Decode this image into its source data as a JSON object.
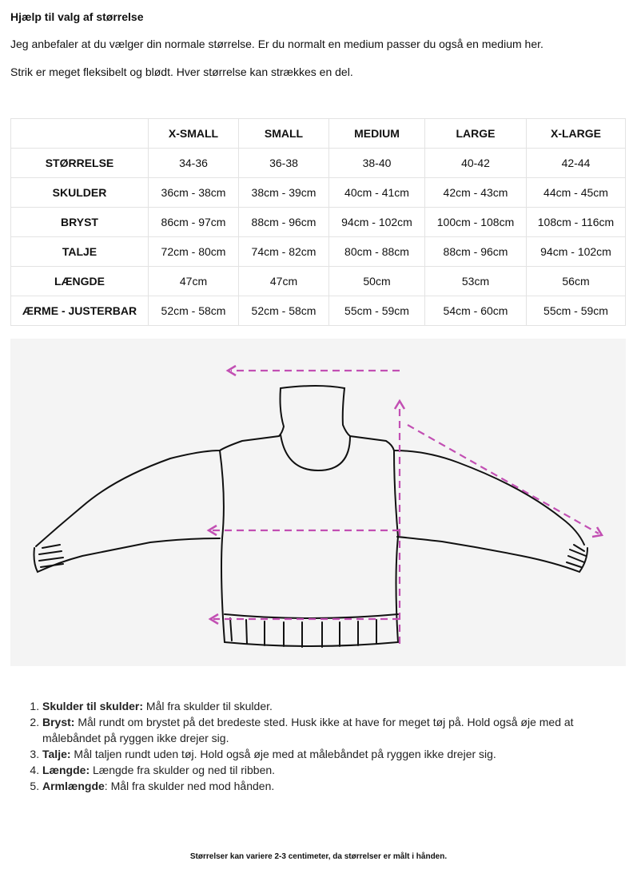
{
  "title": "Hjælp til valg af størrelse",
  "intro": [
    "Jeg anbefaler at du vælger din normale størrelse. Er du normalt en medium passer du også en medium her.",
    "Strik er meget fleksibelt og blødt. Hver størrelse kan strækkes en del."
  ],
  "table": {
    "headers": [
      "",
      "X-SMALL",
      "SMALL",
      "MEDIUM",
      "LARGE",
      "X-LARGE"
    ],
    "rows": [
      [
        "STØRRELSE",
        "34-36",
        "36-38",
        "38-40",
        "40-42",
        "42-44"
      ],
      [
        "SKULDER",
        "36cm - 38cm",
        "38cm - 39cm",
        "40cm - 41cm",
        "42cm - 43cm",
        "44cm - 45cm"
      ],
      [
        "BRYST",
        "86cm - 97cm",
        "88cm - 96cm",
        "94cm - 102cm",
        "100cm - 108cm",
        "108cm - 116cm"
      ],
      [
        "TALJE",
        "72cm - 80cm",
        "74cm - 82cm",
        "80cm - 88cm",
        "88cm - 96cm",
        "94cm - 102cm"
      ],
      [
        "LÆNGDE",
        "47cm",
        "47cm",
        "50cm",
        "53cm",
        "56cm"
      ],
      [
        "ÆRME - JUSTERBAR",
        "52cm - 58cm",
        "52cm - 58cm",
        "55cm - 59cm",
        "54cm - 60cm",
        "55cm - 59cm"
      ]
    ]
  },
  "diagram": {
    "arrow_color": "#c24fb3",
    "background": "#f4f4f4"
  },
  "list": [
    {
      "term": "Skulder til skulder:",
      "text": " Mål fra skulder til skulder."
    },
    {
      "term": "Bryst:",
      "text": " Mål rundt om brystet på det bredeste sted. Husk ikke at have for meget tøj på. Hold også øje med at målebåndet på ryggen ikke drejer sig."
    },
    {
      "term": "Talje:",
      "text": " Mål taljen rundt uden tøj. Hold også øje med at målebåndet på ryggen ikke drejer sig."
    },
    {
      "term": "Længde:",
      "text": " Længde fra skulder og ned til ribben."
    },
    {
      "term": "Armlængde",
      "text": ": Mål fra skulder ned mod hånden."
    }
  ],
  "footer": "Størrelser kan variere 2-3 centimeter, da størrelser er målt i hånden."
}
